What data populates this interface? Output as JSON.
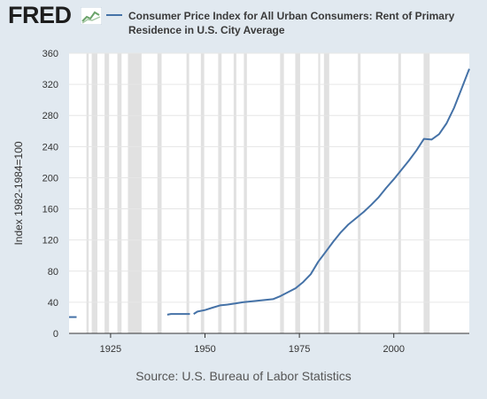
{
  "header": {
    "logo_text": "FRED",
    "logo_icon": "trend-chart-icon"
  },
  "chart_data": {
    "type": "line",
    "series": [
      {
        "name": "Consumer Price Index for All Urban Consumers: Rent of Primary Residence in U.S. City Average",
        "color": "#4572a7",
        "segments": [
          {
            "x": [
              1914,
              1916
            ],
            "y": [
              21,
              21
            ]
          },
          {
            "x": [
              1940,
              1941,
              1942,
              1943,
              1944,
              1945,
              1946
            ],
            "y": [
              24,
              25,
              25,
              25,
              25,
              25,
              25
            ]
          },
          {
            "x": [
              1947,
              1948,
              1950,
              1952,
              1954,
              1956,
              1958,
              1960,
              1962,
              1964,
              1966,
              1968,
              1970,
              1972,
              1974,
              1976,
              1978,
              1980,
              1982,
              1984,
              1986,
              1988,
              1990,
              1992,
              1994,
              1996,
              1998,
              2000,
              2002,
              2004,
              2006,
              2008,
              2010,
              2012,
              2014,
              2016,
              2018,
              2020
            ],
            "y": [
              25,
              28,
              30,
              33,
              36,
              37,
              38.5,
              40,
              41,
              42,
              43,
              44,
              48,
              53,
              58,
              66,
              76,
              92,
              105,
              118,
              130,
              140,
              148,
              156,
              165,
              175,
              187,
              198,
              210,
              222,
              235,
              250,
              249,
              256,
              270,
              290,
              315,
              340
            ]
          }
        ]
      }
    ],
    "ylabel": "Index 1982-1984=100",
    "ylim": [
      0,
      360
    ],
    "yticks": [
      0,
      40,
      80,
      120,
      160,
      200,
      240,
      280,
      320,
      360
    ],
    "xlim": [
      1914,
      2020
    ],
    "xticks": [
      1925,
      1950,
      1975,
      2000
    ],
    "grid": true,
    "recessions": [
      [
        1918.6,
        1919.2
      ],
      [
        1920.0,
        1921.5
      ],
      [
        1923.4,
        1924.6
      ],
      [
        1926.8,
        1927.9
      ],
      [
        1929.6,
        1933.2
      ],
      [
        1937.4,
        1938.5
      ],
      [
        1945.1,
        1945.8
      ],
      [
        1948.9,
        1949.8
      ],
      [
        1953.5,
        1954.4
      ],
      [
        1957.6,
        1958.3
      ],
      [
        1960.3,
        1961.1
      ],
      [
        1969.9,
        1970.9
      ],
      [
        1973.9,
        1975.2
      ],
      [
        1980.0,
        1980.5
      ],
      [
        1981.5,
        1982.9
      ],
      [
        1990.5,
        1991.2
      ],
      [
        2001.2,
        2001.9
      ],
      [
        2007.9,
        2009.5
      ]
    ],
    "source": "Source: U.S. Bureau of Labor Statistics"
  }
}
